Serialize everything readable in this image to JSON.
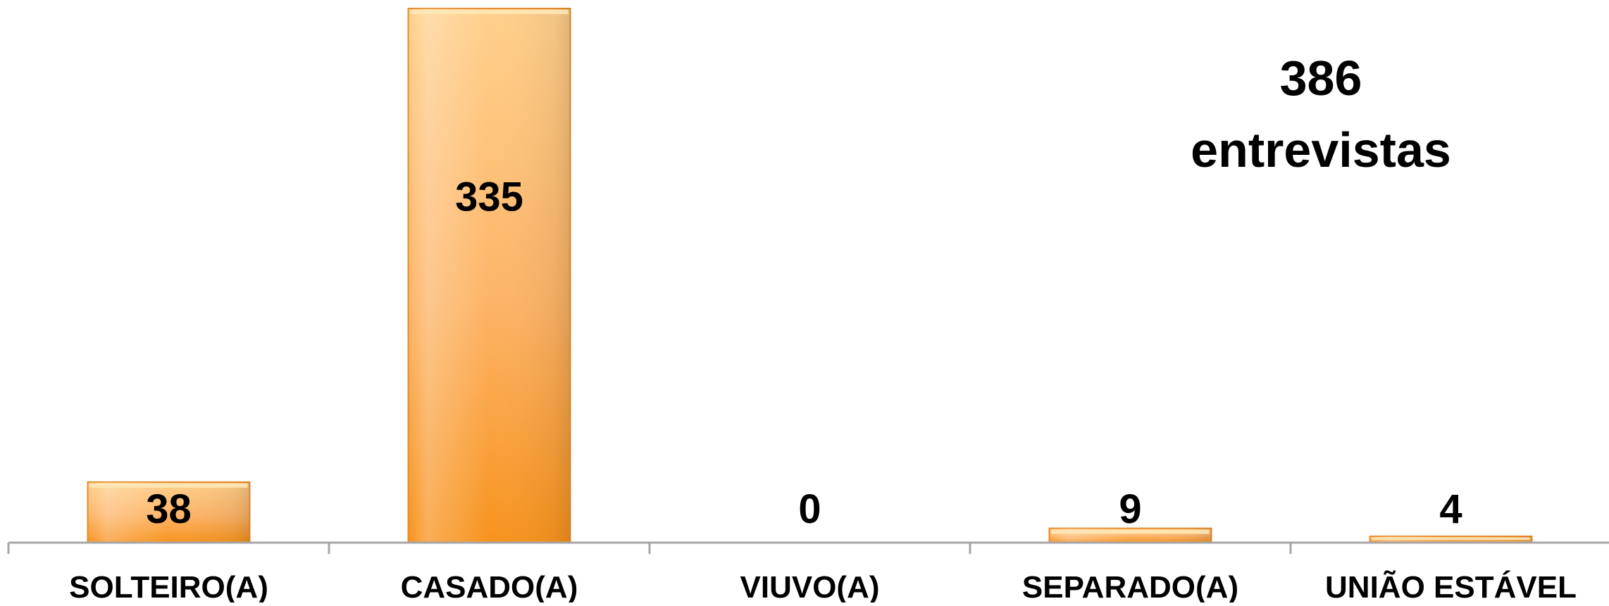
{
  "annotation": {
    "count": "386",
    "label": "entrevistas"
  },
  "chart_data": {
    "type": "bar",
    "title": "",
    "xlabel": "",
    "ylabel": "",
    "categories": [
      "SOLTEIRO(A)",
      "CASADO(A)",
      "VIUVO(A)",
      "SEPARADO(A)",
      "UNIÃO ESTÁVEL"
    ],
    "values": [
      38,
      335,
      0,
      9,
      4
    ],
    "ylim": [
      0,
      335
    ],
    "grid": false,
    "legend": "none",
    "annotations": [
      "386 entrevistas"
    ]
  },
  "colors": {
    "bar_top": "#FFD08C",
    "bar_mid": "#FDB467",
    "bar_bottom": "#F7931E",
    "bar_edge": "#E8892A",
    "axis": "#A6A6A6",
    "text": "#000000"
  }
}
